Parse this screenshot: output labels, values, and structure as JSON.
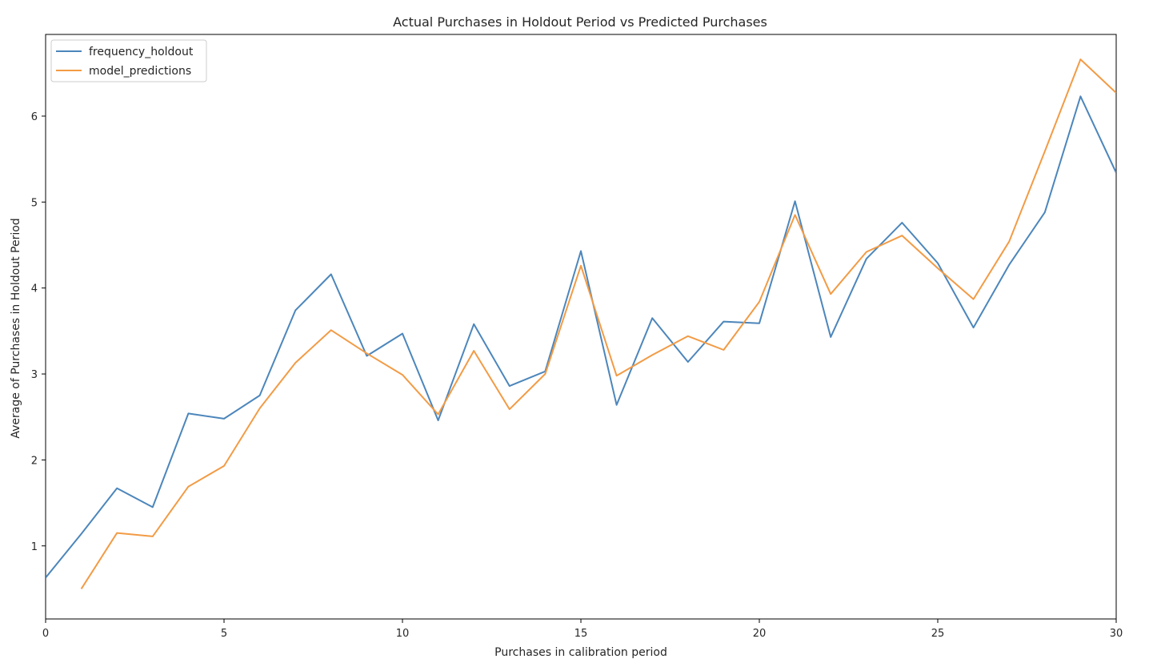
{
  "chart_data": {
    "type": "line",
    "title": "Actual Purchases in Holdout Period vs Predicted Purchases",
    "xlabel": "Purchases in calibration period",
    "ylabel": "Average of Purchases in Holdout Period",
    "xlim": [
      0,
      30
    ],
    "ylim": [
      0.15,
      6.95
    ],
    "x_ticks": [
      0,
      5,
      10,
      15,
      20,
      25,
      30
    ],
    "y_ticks": [
      1,
      2,
      3,
      4,
      5,
      6
    ],
    "grid": false,
    "legend_position": "top-left",
    "series": [
      {
        "name": "frequency_holdout",
        "color": "#4c86bb",
        "x": [
          0,
          1,
          2,
          3,
          4,
          5,
          6,
          7,
          8,
          9,
          10,
          11,
          12,
          13,
          14,
          15,
          16,
          17,
          18,
          19,
          20,
          21,
          22,
          23,
          24,
          25,
          26,
          27,
          28,
          29,
          30
        ],
        "y": [
          0.63,
          1.14,
          1.67,
          1.45,
          2.54,
          2.48,
          2.75,
          3.74,
          4.16,
          3.21,
          3.47,
          2.46,
          3.58,
          2.86,
          3.03,
          4.43,
          2.64,
          3.65,
          3.14,
          3.61,
          3.59,
          5.01,
          3.43,
          4.34,
          4.76,
          4.29,
          3.54,
          4.27,
          4.88,
          6.23,
          5.34
        ]
      },
      {
        "name": "model_predictions",
        "color": "#f29b45",
        "x": [
          1,
          2,
          3,
          4,
          5,
          6,
          7,
          8,
          9,
          10,
          11,
          12,
          13,
          14,
          15,
          16,
          17,
          18,
          19,
          20,
          21,
          22,
          23,
          24,
          25,
          26,
          27,
          28,
          29,
          30
        ],
        "y": [
          0.5,
          1.15,
          1.11,
          1.69,
          1.93,
          2.6,
          3.13,
          3.51,
          3.24,
          2.99,
          2.53,
          3.27,
          2.59,
          3.0,
          4.26,
          2.98,
          3.22,
          3.44,
          3.28,
          3.84,
          4.85,
          3.93,
          4.42,
          4.61,
          4.23,
          3.87,
          4.54,
          5.59,
          6.66,
          6.27
        ]
      }
    ]
  }
}
